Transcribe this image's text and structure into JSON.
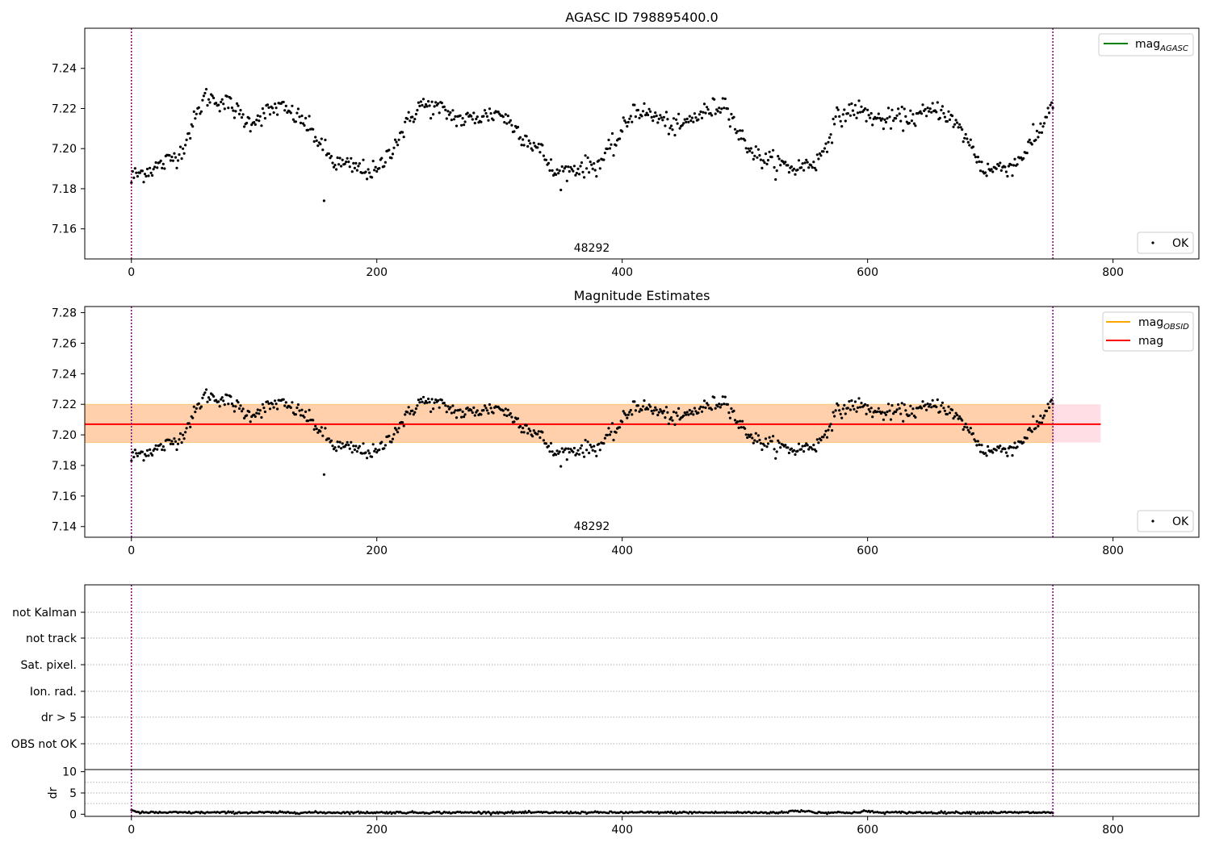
{
  "chart_data": [
    {
      "type": "scatter",
      "title": "AGASC ID 798895400.0",
      "xlim": [
        -38,
        870
      ],
      "ylim": [
        7.145,
        7.26
      ],
      "xticks": [
        0,
        200,
        400,
        600,
        800
      ],
      "yticks": [
        7.16,
        7.18,
        7.2,
        7.22,
        7.24
      ],
      "ytick_labels": [
        "7.16",
        "7.18",
        "7.20",
        "7.22",
        "7.24"
      ],
      "vlines": [
        0,
        751
      ],
      "obsid_label": {
        "x": 375,
        "text": "48292"
      },
      "legend_top": [
        {
          "name": "mag",
          "sub": "AGASC",
          "color": "#008000",
          "kind": "line"
        }
      ],
      "legend_bottom": [
        {
          "name": "OK",
          "color": "#000000",
          "kind": "point"
        }
      ],
      "series": [
        {
          "name": "OK",
          "x_start": 0,
          "x_end": 751,
          "mean": 7.207,
          "noise": 0.0045,
          "keypoints": [
            [
              0,
              7.186
            ],
            [
              25,
              7.192
            ],
            [
              40,
              7.198
            ],
            [
              60,
              7.226
            ],
            [
              80,
              7.222
            ],
            [
              95,
              7.213
            ],
            [
              120,
              7.221
            ],
            [
              140,
              7.214
            ],
            [
              150,
              7.206
            ],
            [
              165,
              7.193
            ],
            [
              200,
              7.188
            ],
            [
              215,
              7.203
            ],
            [
              235,
              7.222
            ],
            [
              250,
              7.22
            ],
            [
              270,
              7.214
            ],
            [
              300,
              7.218
            ],
            [
              320,
              7.206
            ],
            [
              335,
              7.198
            ],
            [
              345,
              7.187
            ],
            [
              360,
              7.19
            ],
            [
              380,
              7.192
            ],
            [
              395,
              7.203
            ],
            [
              410,
              7.22
            ],
            [
              430,
              7.215
            ],
            [
              445,
              7.21
            ],
            [
              460,
              7.216
            ],
            [
              485,
              7.223
            ],
            [
              495,
              7.207
            ],
            [
              510,
              7.196
            ],
            [
              540,
              7.19
            ],
            [
              560,
              7.194
            ],
            [
              575,
              7.215
            ],
            [
              590,
              7.22
            ],
            [
              610,
              7.214
            ],
            [
              640,
              7.216
            ],
            [
              660,
              7.22
            ],
            [
              680,
              7.206
            ],
            [
              695,
              7.189
            ],
            [
              720,
              7.192
            ],
            [
              740,
              7.208
            ],
            [
              751,
              7.224
            ]
          ]
        }
      ]
    },
    {
      "type": "scatter",
      "title": "Magnitude Estimates",
      "xlim": [
        -38,
        870
      ],
      "ylim": [
        7.133,
        7.284
      ],
      "xticks": [
        0,
        200,
        400,
        600,
        800
      ],
      "yticks": [
        7.14,
        7.16,
        7.18,
        7.2,
        7.22,
        7.24,
        7.26,
        7.28
      ],
      "ytick_labels": [
        "7.14",
        "7.16",
        "7.18",
        "7.20",
        "7.22",
        "7.24",
        "7.26",
        "7.28"
      ],
      "vlines": [
        0,
        751
      ],
      "obsid_label": {
        "x": 375,
        "text": "48292"
      },
      "hline": {
        "y": 7.207,
        "x_start": -38,
        "x_end": 790,
        "color": "#ff0000"
      },
      "band_pink": {
        "y_low": 7.195,
        "y_high": 7.22,
        "x_start": -38,
        "x_end": 790
      },
      "band_orange": {
        "y_low": 7.195,
        "y_high": 7.22,
        "x_start": -38,
        "x_end": 751
      },
      "legend_top": [
        {
          "name": "mag",
          "sub": "OBSID",
          "color": "#ffa500",
          "kind": "line"
        },
        {
          "name": "mag",
          "sub": "",
          "color": "#ff0000",
          "kind": "line"
        }
      ],
      "legend_bottom": [
        {
          "name": "OK",
          "color": "#000000",
          "kind": "point"
        }
      ],
      "series": [
        {
          "name": "OK",
          "same_as_panel": 0
        }
      ]
    },
    {
      "type": "scatter",
      "title": "",
      "xlim": [
        -38,
        870
      ],
      "xticks": [
        0,
        200,
        400,
        600,
        800
      ],
      "vlines": [
        0,
        751
      ],
      "flag_categories": [
        "not Kalman",
        "not track",
        "Sat. pixel.",
        "Ion. rad.",
        "dr > 5",
        "OBS not OK"
      ],
      "dr_axis": {
        "ylabel": "dr",
        "ylim": [
          -0.5,
          10.5
        ],
        "yticks": [
          0,
          5,
          10
        ],
        "ytick_labels": [
          "0",
          "5",
          "10"
        ]
      },
      "series": [
        {
          "name": "dr",
          "x_start": 0,
          "x_end": 751,
          "base": 0.4,
          "start_value": 1.0
        }
      ]
    }
  ]
}
